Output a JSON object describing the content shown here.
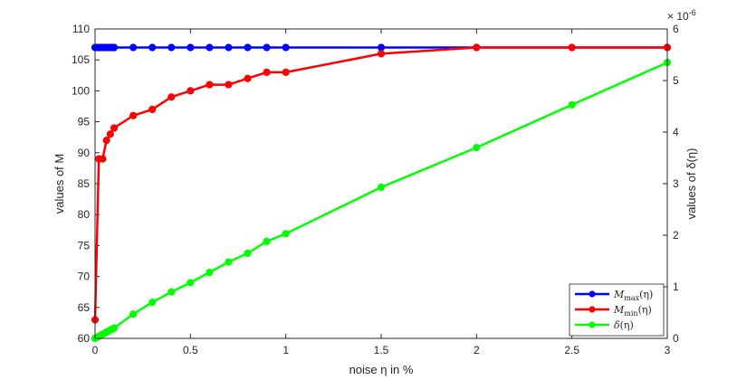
{
  "chart_data": {
    "type": "line",
    "xlabel": "noise η in %",
    "ylabel_left": "values of M",
    "ylabel_right": "values of δ(η)",
    "right_exponent": "× 10",
    "right_exponent_power": "-6",
    "xlim": [
      0,
      3
    ],
    "ylim_left": [
      60,
      110
    ],
    "ylim_right": [
      0,
      6
    ],
    "x_ticks": [
      "0",
      "0.5",
      "1",
      "1.5",
      "2",
      "2.5",
      "3"
    ],
    "y_left_ticks": [
      "60",
      "65",
      "70",
      "75",
      "80",
      "85",
      "90",
      "95",
      "100",
      "105",
      "110"
    ],
    "y_right_ticks": [
      "0",
      "1",
      "2",
      "3",
      "4",
      "5",
      "6"
    ],
    "legend_position": "bottom-right",
    "series": [
      {
        "name": "M_max(η)",
        "legend_main": "M",
        "legend_sub": "max",
        "legend_arg": "(η)",
        "color": "#0000ff",
        "axis": "left",
        "x": [
          0,
          0.01,
          0.02,
          0.03,
          0.04,
          0.05,
          0.06,
          0.07,
          0.08,
          0.09,
          0.1,
          0.2,
          0.3,
          0.4,
          0.5,
          0.6,
          0.7,
          0.8,
          0.9,
          1.0,
          1.5,
          2.0,
          2.5,
          3.0
        ],
        "y": [
          107,
          107,
          107,
          107,
          107,
          107,
          107,
          107,
          107,
          107,
          107,
          107,
          107,
          107,
          107,
          107,
          107,
          107,
          107,
          107,
          107,
          107,
          107,
          107
        ]
      },
      {
        "name": "M_min(η)",
        "legend_main": "M",
        "legend_sub": "min",
        "legend_arg": "(η)",
        "color": "#ff0000",
        "axis": "left",
        "x": [
          0,
          0.02,
          0.04,
          0.06,
          0.08,
          0.1,
          0.2,
          0.3,
          0.4,
          0.5,
          0.6,
          0.7,
          0.8,
          0.9,
          1.0,
          1.5,
          2.0,
          2.5,
          3.0
        ],
        "y": [
          63,
          89,
          89,
          92,
          93,
          94,
          96,
          97,
          99,
          100,
          101,
          101,
          102,
          103,
          103,
          106,
          107,
          107,
          107
        ]
      },
      {
        "name": "δ(η)",
        "legend_main": "δ",
        "legend_sub": "",
        "legend_arg": "(η)",
        "color": "#00ff00",
        "axis": "right",
        "x": [
          0,
          0.01,
          0.02,
          0.03,
          0.04,
          0.05,
          0.06,
          0.07,
          0.08,
          0.09,
          0.1,
          0.2,
          0.3,
          0.4,
          0.5,
          0.6,
          0.7,
          0.8,
          0.9,
          1.0,
          1.5,
          2.0,
          2.5,
          3.0
        ],
        "y": [
          0,
          0.02,
          0.04,
          0.06,
          0.08,
          0.1,
          0.12,
          0.14,
          0.16,
          0.18,
          0.2,
          0.47,
          0.7,
          0.9,
          1.08,
          1.28,
          1.48,
          1.65,
          1.88,
          2.03,
          2.93,
          3.7,
          4.53,
          5.35
        ]
      }
    ]
  }
}
